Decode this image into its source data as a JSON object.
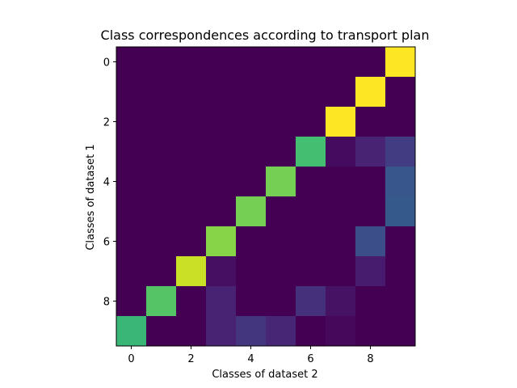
{
  "chart_data": {
    "type": "heatmap",
    "title": "Class correspondences according to transport plan",
    "xlabel": "Classes of dataset 2",
    "ylabel": "Classes of dataset 1",
    "xticks": [
      0,
      2,
      4,
      6,
      8
    ],
    "yticks": [
      0,
      2,
      4,
      6,
      8
    ],
    "rows": [
      0,
      1,
      2,
      3,
      4,
      5,
      6,
      7,
      8,
      9
    ],
    "cols": [
      0,
      1,
      2,
      3,
      4,
      5,
      6,
      7,
      8,
      9
    ],
    "colormap": "viridis",
    "vlim": [
      0,
      1
    ],
    "values": [
      [
        0.0,
        0.0,
        0.0,
        0.0,
        0.0,
        0.0,
        0.0,
        0.0,
        0.0,
        1.0
      ],
      [
        0.0,
        0.0,
        0.0,
        0.0,
        0.0,
        0.0,
        0.0,
        0.0,
        1.0,
        0.0
      ],
      [
        0.0,
        0.0,
        0.0,
        0.0,
        0.0,
        0.0,
        0.0,
        1.0,
        0.0,
        0.0
      ],
      [
        0.0,
        0.0,
        0.0,
        0.0,
        0.0,
        0.0,
        0.7,
        0.03,
        0.1,
        0.18
      ],
      [
        0.0,
        0.0,
        0.0,
        0.0,
        0.0,
        0.79,
        0.0,
        0.0,
        0.0,
        0.27
      ],
      [
        0.0,
        0.0,
        0.0,
        0.0,
        0.79,
        0.0,
        0.0,
        0.0,
        0.0,
        0.28
      ],
      [
        0.0,
        0.0,
        0.0,
        0.82,
        0.0,
        0.0,
        0.0,
        0.0,
        0.24,
        0.0
      ],
      [
        0.0,
        0.0,
        0.92,
        0.04,
        0.0,
        0.0,
        0.0,
        0.0,
        0.08,
        0.0
      ],
      [
        0.0,
        0.73,
        0.0,
        0.1,
        0.0,
        0.0,
        0.14,
        0.05,
        0.0,
        0.0
      ],
      [
        0.67,
        0.0,
        0.0,
        0.1,
        0.16,
        0.11,
        0.0,
        0.02,
        0.0,
        0.0
      ]
    ]
  }
}
